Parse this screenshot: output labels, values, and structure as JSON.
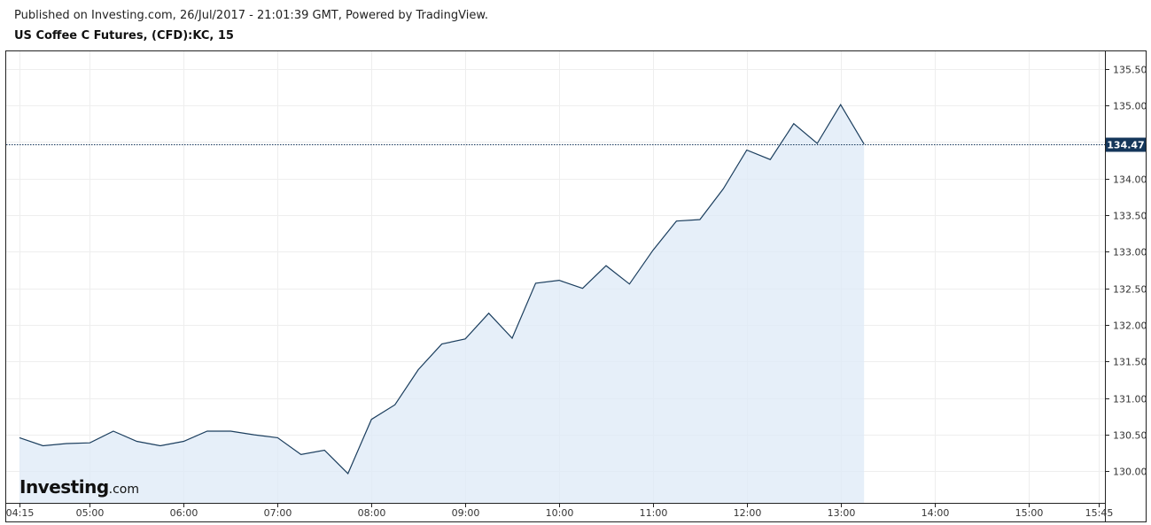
{
  "header": {
    "published": "Published on Investing.com, 26/Jul/2017 - 21:01:39 GMT, Powered by TradingView.",
    "title": "US Coffee C Futures, (CFD):KC, 15"
  },
  "brand": {
    "name": "Investing",
    "suffix": ".com"
  },
  "colors": {
    "line": "#1b3e5e",
    "fill": "#dde9f7",
    "grid": "#eeeeee",
    "price_badge": "#14365a",
    "axis_text": "#333333"
  },
  "chart_data": {
    "type": "area",
    "title": "US Coffee C Futures, (CFD):KC, 15",
    "x": [
      "04:15",
      "04:30",
      "04:45",
      "05:00",
      "05:15",
      "05:30",
      "05:45",
      "06:00",
      "06:15",
      "06:30",
      "06:45",
      "07:00",
      "07:15",
      "07:30",
      "07:45",
      "08:00",
      "08:15",
      "08:30",
      "08:45",
      "09:00",
      "09:15",
      "09:30",
      "09:45",
      "10:00",
      "10:15",
      "10:30",
      "10:45",
      "11:00",
      "11:15",
      "11:30",
      "11:45",
      "12:00",
      "12:15",
      "12:30",
      "12:45",
      "13:00",
      "13:15"
    ],
    "values": [
      130.46,
      130.35,
      130.38,
      130.39,
      130.55,
      130.41,
      130.35,
      130.41,
      130.55,
      130.55,
      130.5,
      130.46,
      130.23,
      130.29,
      129.97,
      130.71,
      130.91,
      131.39,
      131.74,
      131.81,
      132.16,
      131.82,
      132.57,
      132.61,
      132.5,
      132.81,
      132.56,
      133.02,
      133.42,
      133.44,
      133.86,
      134.39,
      134.26,
      134.75,
      134.48,
      135.01,
      134.47
    ],
    "x_ticks": [
      "04:15",
      "05:00",
      "06:00",
      "07:00",
      "08:00",
      "09:00",
      "10:00",
      "11:00",
      "12:00",
      "13:00",
      "14:00",
      "15:00",
      "15:45"
    ],
    "y_ticks": [
      "135.50",
      "135.00",
      "134.50",
      "134.00",
      "133.50",
      "133.00",
      "132.50",
      "132.00",
      "131.50",
      "131.00",
      "130.50",
      "130.00"
    ],
    "ylim": [
      129.57,
      135.75
    ],
    "xlim": [
      "04:15",
      "15:45"
    ],
    "current_price": "134.47",
    "grid": true
  }
}
